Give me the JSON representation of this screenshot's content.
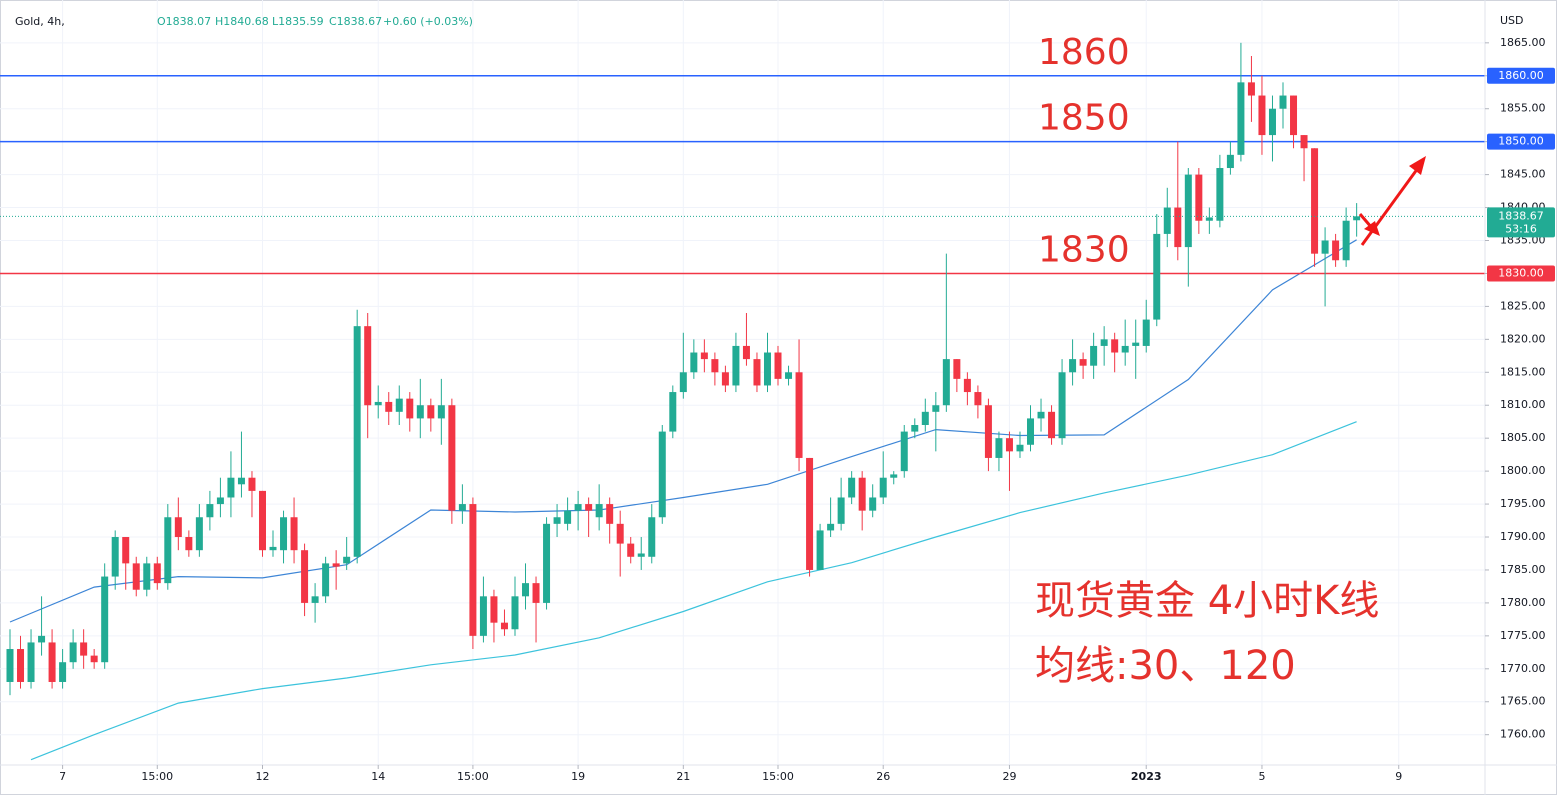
{
  "chart_data": {
    "type": "candlestick",
    "header": {
      "symbol": "Gold, 4h,",
      "ohlc": [
        "O1838.07",
        "H1840.68",
        "L1835.59",
        "C1838.67",
        "+0.60 (+0.03%)"
      ]
    },
    "axis_unit": "USD",
    "up_color": "#22ab94",
    "down_color": "#f23645",
    "open": [
      1768,
      1773,
      1768,
      1774,
      1774,
      1768,
      1771,
      1774,
      1772,
      1771,
      1784,
      1790,
      1786,
      1782,
      1786,
      1783,
      1793,
      1790,
      1788,
      1793,
      1795,
      1796,
      1798,
      1799,
      1797,
      1788,
      1788,
      1793,
      1788,
      1780,
      1781,
      1786,
      1786,
      1787,
      1822,
      1810,
      1810.5,
      1809,
      1811,
      1808,
      1810,
      1808,
      1810,
      1794,
      1795,
      1775,
      1781,
      1777,
      1776,
      1781,
      1783,
      1780,
      1792,
      1792,
      1794,
      1795,
      1793,
      1795,
      1792,
      1789,
      1787,
      1787,
      1793,
      1806,
      1812,
      1815,
      1818,
      1817,
      1815,
      1813,
      1819,
      1817,
      1813,
      1818,
      1814,
      1815,
      1802,
      1785,
      1791,
      1792,
      1796,
      1799,
      1794,
      1796,
      1799,
      1800,
      1806,
      1807,
      1809,
      1810,
      1817,
      1814,
      1812,
      1810,
      1802,
      1805,
      1803,
      1804,
      1808,
      1809,
      1805,
      1815,
      1817,
      1816,
      1819,
      1820,
      1818,
      1819,
      1819,
      1823,
      1836,
      1840,
      1834,
      1845,
      1838,
      1838,
      1846,
      1848,
      1859,
      1857,
      1851,
      1855,
      1857,
      1851,
      1849,
      1833,
      1835,
      1832,
      1838.07
    ],
    "high": [
      1776,
      1775,
      1776,
      1781,
      1776,
      1773,
      1776,
      1776,
      1773,
      1786,
      1791,
      1790,
      1787,
      1787,
      1787,
      1795,
      1796,
      1791,
      1795,
      1797,
      1799,
      1803,
      1806,
      1800,
      1797,
      1791,
      1794,
      1796,
      1789,
      1783,
      1787,
      1788,
      1790,
      1824.5,
      1824,
      1813,
      1812,
      1813,
      1812,
      1814,
      1811,
      1814,
      1811,
      1798,
      1796,
      1784,
      1782,
      1779,
      1784,
      1786,
      1784,
      1793,
      1795,
      1796,
      1797,
      1796,
      1798,
      1796,
      1794,
      1790,
      1790,
      1795,
      1807,
      1813,
      1821,
      1820,
      1820,
      1818,
      1816,
      1821,
      1824,
      1818,
      1821,
      1819,
      1816,
      1820,
      1802,
      1792,
      1796,
      1799,
      1800,
      1800,
      1798,
      1803,
      1800,
      1807,
      1808,
      1811,
      1812,
      1833,
      1817,
      1815,
      1813,
      1811,
      1806,
      1806,
      1806,
      1810,
      1811,
      1810,
      1817,
      1820,
      1818,
      1821,
      1822,
      1821,
      1823,
      1823,
      1826,
      1839,
      1843,
      1850,
      1846,
      1846,
      1840,
      1848,
      1850,
      1865,
      1863,
      1860,
      1857,
      1859,
      1857,
      1851,
      1849,
      1837,
      1836,
      1840,
      1840.68
    ],
    "low": [
      1766,
      1767,
      1767,
      1772,
      1767,
      1767,
      1770,
      1770,
      1770,
      1770,
      1782,
      1782,
      1781,
      1781,
      1782,
      1782,
      1788,
      1787,
      1787,
      1791,
      1793,
      1793,
      1796,
      1793,
      1787,
      1787,
      1786,
      1786,
      1778,
      1777,
      1780,
      1782,
      1785,
      1786,
      1805,
      1808,
      1807,
      1807,
      1806,
      1805,
      1806,
      1804,
      1792,
      1792,
      1773,
      1774,
      1774,
      1775,
      1775,
      1779,
      1774,
      1779,
      1790,
      1791,
      1791,
      1790,
      1791,
      1789,
      1784,
      1786,
      1785,
      1786,
      1792,
      1805,
      1811,
      1814,
      1815,
      1813,
      1812,
      1812,
      1816,
      1812,
      1812,
      1813,
      1813,
      1800,
      1784,
      1785,
      1790,
      1791,
      1795,
      1791,
      1793,
      1795,
      1798,
      1799,
      1805,
      1806,
      1803,
      1809,
      1812,
      1810,
      1808,
      1800,
      1800,
      1797,
      1802,
      1803,
      1806,
      1804,
      1804,
      1813,
      1814,
      1814,
      1816,
      1815,
      1816,
      1814,
      1818,
      1822,
      1834,
      1832,
      1828,
      1836,
      1836,
      1837,
      1845,
      1847,
      1853,
      1848,
      1847,
      1852,
      1849,
      1844,
      1831,
      1825,
      1831,
      1831,
      1835.59
    ],
    "close": [
      1773,
      1768,
      1774,
      1775,
      1768,
      1771,
      1774,
      1772,
      1771,
      1784,
      1790,
      1786,
      1782,
      1786,
      1783,
      1793,
      1790,
      1788,
      1793,
      1795,
      1796,
      1799,
      1799,
      1797,
      1788,
      1788.5,
      1793,
      1788,
      1780,
      1781,
      1786,
      1785.5,
      1787,
      1822,
      1810,
      1810.5,
      1809,
      1811,
      1808,
      1810,
      1808,
      1810,
      1794,
      1795,
      1775,
      1781,
      1777,
      1776,
      1781,
      1783,
      1780,
      1792,
      1793,
      1794,
      1795,
      1794,
      1795,
      1792,
      1789,
      1787,
      1787.5,
      1793,
      1806,
      1812,
      1815,
      1818,
      1817,
      1815,
      1813,
      1819,
      1817,
      1813,
      1818,
      1814,
      1815,
      1802,
      1785,
      1791,
      1792,
      1796,
      1799,
      1794,
      1796,
      1799,
      1799.5,
      1806,
      1807,
      1809,
      1810,
      1817,
      1814,
      1812,
      1810,
      1802,
      1805,
      1803,
      1804,
      1808,
      1809,
      1805,
      1815,
      1817,
      1816,
      1819,
      1820,
      1818,
      1819,
      1819.5,
      1823,
      1836,
      1840,
      1834,
      1845,
      1838,
      1838.5,
      1846,
      1848,
      1859,
      1857,
      1851,
      1855,
      1857,
      1851,
      1849,
      1833,
      1835,
      1832,
      1838,
      1838.67
    ],
    "lines": [
      {
        "color": "#3d85d6",
        "x": [
          0,
          8,
          16,
          24,
          32,
          40,
          48,
          56,
          64,
          72,
          80,
          88,
          96,
          104,
          112,
          120,
          128
        ],
        "values": [
          1777.1,
          1782.4,
          1784,
          1783.8,
          1785.8,
          1794.1,
          1793.8,
          1794.1,
          1796,
          1798,
          1802.2,
          1806.3,
          1805.4,
          1805.5,
          1813.9,
          1827.5,
          1835.1
        ]
      },
      {
        "color": "#3cc3dc",
        "x": [
          2,
          8,
          16,
          24,
          32,
          40,
          48,
          56,
          64,
          72,
          80,
          88,
          96,
          104,
          112,
          120,
          128
        ],
        "values": [
          1756.2,
          1760,
          1764.8,
          1767,
          1768.6,
          1770.6,
          1772.1,
          1774.7,
          1778.7,
          1783.2,
          1786.1,
          1790,
          1793.7,
          1796.7,
          1799.4,
          1802.5,
          1807.5
        ]
      }
    ],
    "hlines": [
      {
        "value": 1860,
        "label": "1860.00",
        "note": "1860",
        "color": "#2962ff"
      },
      {
        "value": 1850,
        "label": "1850.00",
        "note": "1850",
        "color": "#2962ff"
      },
      {
        "value": 1830,
        "label": "1830.00",
        "note": "1830",
        "color": "#f23645"
      }
    ],
    "last": {
      "value": 1838.67,
      "label": "1838.67",
      "countdown": "53:16",
      "color": "#22ab94"
    },
    "annotations": [
      "现货黄金 4小时K线",
      "均线:30、120"
    ],
    "annotation_color": "#e5322d",
    "xlim": [
      -0.95,
      140.2
    ],
    "xticks": [
      {
        "value": 5,
        "label": "7"
      },
      {
        "value": 14,
        "label": "15:00"
      },
      {
        "value": 24,
        "label": "12"
      },
      {
        "value": 35,
        "label": "14"
      },
      {
        "value": 44,
        "label": "15:00"
      },
      {
        "value": 54,
        "label": "19"
      },
      {
        "value": 64,
        "label": "21"
      },
      {
        "value": 73,
        "label": "15:00"
      },
      {
        "value": 83,
        "label": "26"
      },
      {
        "value": 95,
        "label": "29"
      },
      {
        "value": 108,
        "label": "2023"
      },
      {
        "value": 119,
        "label": "5"
      },
      {
        "value": 132,
        "label": "9"
      }
    ],
    "ylim": [
      1755.4,
      1871.5
    ],
    "yticks": [
      {
        "value": 1760,
        "label": "1760.00"
      },
      {
        "value": 1765,
        "label": "1765.00"
      },
      {
        "value": 1770,
        "label": "1770.00"
      },
      {
        "value": 1775,
        "label": "1775.00"
      },
      {
        "value": 1780,
        "label": "1780.00"
      },
      {
        "value": 1785,
        "label": "1785.00"
      },
      {
        "value": 1790,
        "label": "1790.00"
      },
      {
        "value": 1795,
        "label": "1795.00"
      },
      {
        "value": 1800,
        "label": "1800.00"
      },
      {
        "value": 1805,
        "label": "1805.00"
      },
      {
        "value": 1810,
        "label": "1810.00"
      },
      {
        "value": 1815,
        "label": "1815.00"
      },
      {
        "value": 1820,
        "label": "1820.00"
      },
      {
        "value": 1825,
        "label": "1825.00"
      },
      {
        "value": 1830,
        "label": "1830.00"
      },
      {
        "value": 1835,
        "label": "1835.00"
      },
      {
        "value": 1840,
        "label": "1840.00"
      },
      {
        "value": 1845,
        "label": "1845.00"
      },
      {
        "value": 1850,
        "label": "1850.00"
      },
      {
        "value": 1855,
        "label": "1855.00"
      },
      {
        "value": 1860,
        "label": "1860.00"
      },
      {
        "value": 1865,
        "label": "1865.00"
      }
    ],
    "grid": true
  }
}
